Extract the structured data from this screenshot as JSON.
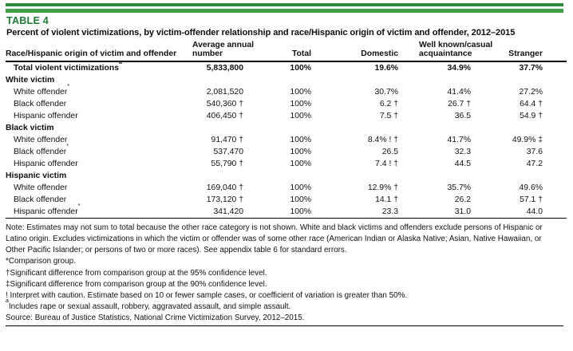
{
  "header": {
    "table_label": "TABLE 4",
    "title": "Percent of violent victimizations, by victim-offender relationship and race/Hispanic origin of victim and offender, 2012–2015"
  },
  "colors": {
    "accent_green_dark": "#2e8b3e",
    "accent_green_light": "#3f9e48",
    "title_green": "#1f7a34",
    "rule_black": "#000000"
  },
  "table": {
    "columns": [
      "Race/Hispanic origin of victim and offender",
      "Average annual\nnumber",
      "Total",
      "Domestic",
      "Well known/casual\nacquaintance",
      "Stranger"
    ],
    "rows": [
      {
        "type": "total",
        "label": "Total violent victimizations",
        "sup": "a",
        "values": [
          "5,833,800",
          "100%",
          "19.6%",
          "34.9%",
          "37.7%"
        ]
      },
      {
        "type": "section",
        "label": "White victim",
        "sup": "",
        "values": [
          "",
          "",
          "",
          "",
          ""
        ]
      },
      {
        "type": "data",
        "label": "White offender",
        "sup": "*",
        "values": [
          "2,081,520",
          "100%",
          "30.7%",
          "41.4%",
          "27.2%"
        ]
      },
      {
        "type": "data",
        "label": "Black offender",
        "sup": "",
        "values": [
          "540,360 †",
          "100%",
          "6.2 †",
          "26.7 †",
          "64.4 †"
        ]
      },
      {
        "type": "data",
        "label": "Hispanic offender",
        "sup": "",
        "values": [
          "406,450 †",
          "100%",
          "7.5 †",
          "36.5",
          "54.9 †"
        ]
      },
      {
        "type": "section",
        "label": "Black victim",
        "sup": "",
        "values": [
          "",
          "",
          "",
          "",
          ""
        ]
      },
      {
        "type": "data",
        "label": "White offender",
        "sup": "",
        "values": [
          "91,470 †",
          "100%",
          "8.4% ! †",
          "41.7%",
          "49.9% ‡"
        ]
      },
      {
        "type": "data",
        "label": "Black offender",
        "sup": "*",
        "values": [
          "537,470",
          "100%",
          "26.5",
          "32.3",
          "37.6"
        ]
      },
      {
        "type": "data",
        "label": "Hispanic offender",
        "sup": "",
        "values": [
          "55,790 †",
          "100%",
          "7.4 ! †",
          "44.5",
          "47.2"
        ]
      },
      {
        "type": "section",
        "label": "Hispanic victim",
        "sup": "",
        "values": [
          "",
          "",
          "",
          "",
          ""
        ]
      },
      {
        "type": "data",
        "label": "White offender",
        "sup": "",
        "values": [
          "169,040 †",
          "100%",
          "12.9% †",
          "35.7%",
          "49.6%"
        ]
      },
      {
        "type": "data",
        "label": "Black offender",
        "sup": "",
        "values": [
          "173,120 †",
          "100%",
          "14.1 †",
          "26.2",
          "57.1 †"
        ]
      },
      {
        "type": "data",
        "label": "Hispanic offender",
        "sup": "*",
        "values": [
          "341,420",
          "100%",
          "23.3",
          "31.0",
          "44.0"
        ]
      }
    ]
  },
  "notes": [
    {
      "sup": "",
      "text": "Note: Estimates may not sum to total because the other race category is not shown. White and black victims and offenders exclude persons of Hispanic or Latino origin. Excludes victimizations in which the victim or offender was of some other race (American Indian or Alaska Native; Asian, Native Hawaiian, or Other Pacific Islander; or persons of two or more races). See appendix table 6 for standard errors."
    },
    {
      "sup": "",
      "text": "*Comparison group."
    },
    {
      "sup": "",
      "text": "†Significant difference from comparison group at the 95% confidence level."
    },
    {
      "sup": "",
      "text": "‡Significant difference from comparison group at the 90% confidence level."
    },
    {
      "sup": "",
      "text": "! Interpret with caution. Estimate based on 10 or fewer sample cases, or coefficient of variation is greater than 50%."
    },
    {
      "sup": "a",
      "text": "Includes rape or sexual assault, robbery, aggravated assault, and simple assault."
    },
    {
      "sup": "",
      "text": "Source: Bureau of Justice Statistics, National Crime Victimization Survey, 2012–2015."
    }
  ]
}
